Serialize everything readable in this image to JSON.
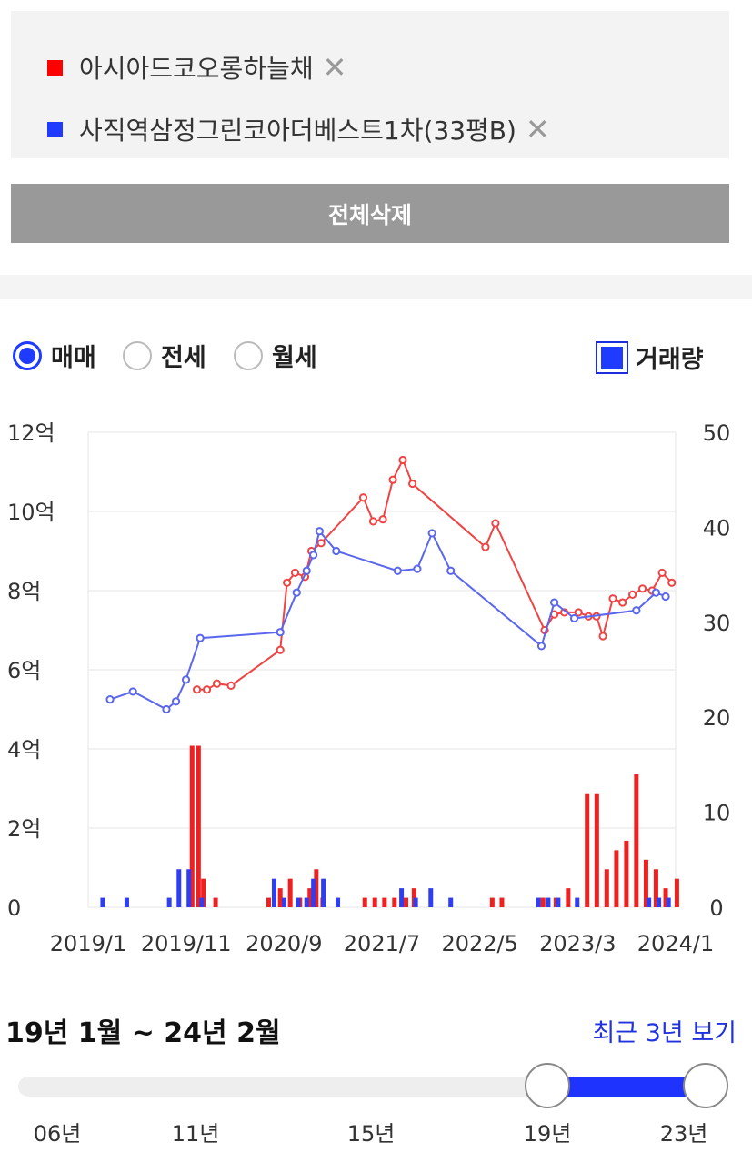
{
  "selected_items": [
    {
      "name": "아시아드코오롱하늘채",
      "color": "#ff0000",
      "remove_icon": "close-icon"
    },
    {
      "name": "사직역삼정그린코아더베스트1차(33평B)",
      "color": "#1f3bff",
      "remove_icon": "close-icon"
    }
  ],
  "remove_glyph": "✕",
  "delete_all_label": "전체삭제",
  "trade_types": [
    {
      "label": "매매",
      "checked": true
    },
    {
      "label": "전세",
      "checked": false
    },
    {
      "label": "월세",
      "checked": false
    }
  ],
  "volume_toggle": {
    "label": "거래량",
    "checked": true
  },
  "chart_data": {
    "type": "line+bar",
    "x_ticks": [
      "2019/1",
      "2019/11",
      "2020/9",
      "2021/7",
      "2022/5",
      "2023/3",
      "2024/1"
    ],
    "x_range": [
      "2019/1",
      "2024/1"
    ],
    "y_left": {
      "ticks": [
        "0",
        "2억",
        "4억",
        "6억",
        "8억",
        "10억",
        "12억"
      ],
      "range": [
        0,
        12
      ],
      "unit": "억"
    },
    "y_right": {
      "ticks": [
        "0",
        "10",
        "20",
        "30",
        "40",
        "50"
      ],
      "range": [
        0,
        50
      ]
    },
    "grid": true,
    "price_series": [
      {
        "color": "#f04444",
        "points": [
          [
            "2019-12-05",
            5.5
          ],
          [
            "2020-01-05",
            5.5
          ],
          [
            "2020-02-05",
            5.65
          ],
          [
            "2020-03-20",
            5.6
          ],
          [
            "2020-08-20",
            6.5
          ],
          [
            "2020-09-10",
            8.2
          ],
          [
            "2020-10-05",
            8.45
          ],
          [
            "2020-11-05",
            8.35
          ],
          [
            "2020-11-25",
            9.0
          ],
          [
            "2020-12-25",
            9.2
          ],
          [
            "2021-05-05",
            10.35
          ],
          [
            "2021-06-05",
            9.75
          ],
          [
            "2021-07-05",
            9.8
          ],
          [
            "2021-08-05",
            10.8
          ],
          [
            "2021-09-05",
            11.3
          ],
          [
            "2021-10-05",
            10.7
          ],
          [
            "2022-05-20",
            9.1
          ],
          [
            "2022-06-20",
            9.7
          ],
          [
            "2022-11-20",
            7.0
          ],
          [
            "2022-12-20",
            7.4
          ],
          [
            "2023-01-20",
            7.45
          ],
          [
            "2023-03-05",
            7.45
          ],
          [
            "2023-04-05",
            7.35
          ],
          [
            "2023-04-30",
            7.35
          ],
          [
            "2023-05-20",
            6.85
          ],
          [
            "2023-06-20",
            7.8
          ],
          [
            "2023-07-20",
            7.7
          ],
          [
            "2023-08-20",
            7.9
          ],
          [
            "2023-09-20",
            8.05
          ],
          [
            "2023-10-20",
            8.0
          ],
          [
            "2023-11-20",
            8.45
          ],
          [
            "2023-12-20",
            8.2
          ]
        ]
      },
      {
        "color": "#5a66ee",
        "points": [
          [
            "2019-03-10",
            5.25
          ],
          [
            "2019-05-20",
            5.45
          ],
          [
            "2019-09-01",
            5.0
          ],
          [
            "2019-10-01",
            5.2
          ],
          [
            "2019-11-01",
            5.75
          ],
          [
            "2019-12-15",
            6.8
          ],
          [
            "2020-08-20",
            6.95
          ],
          [
            "2020-10-10",
            7.95
          ],
          [
            "2020-11-10",
            8.5
          ],
          [
            "2020-12-01",
            8.9
          ],
          [
            "2020-12-20",
            9.5
          ],
          [
            "2021-02-10",
            9.0
          ],
          [
            "2021-08-20",
            8.5
          ],
          [
            "2021-10-20",
            8.55
          ],
          [
            "2021-12-05",
            9.45
          ],
          [
            "2022-02-01",
            8.5
          ],
          [
            "2022-11-10",
            6.6
          ],
          [
            "2022-12-20",
            7.7
          ],
          [
            "2023-02-20",
            7.3
          ],
          [
            "2023-09-01",
            7.5
          ],
          [
            "2023-11-01",
            7.95
          ],
          [
            "2023-12-01",
            7.85
          ]
        ]
      }
    ],
    "volume_series": [
      {
        "color": "#f02020",
        "points": [
          [
            "2019-11-20",
            17
          ],
          [
            "2019-12-10",
            17
          ],
          [
            "2019-12-25",
            3
          ],
          [
            "2020-02-01",
            1
          ],
          [
            "2020-07-15",
            1
          ],
          [
            "2020-08-20",
            2
          ],
          [
            "2020-09-20",
            3
          ],
          [
            "2020-10-20",
            1
          ],
          [
            "2020-11-20",
            2
          ],
          [
            "2020-12-10",
            4
          ],
          [
            "2020-12-30",
            1
          ],
          [
            "2021-05-10",
            1
          ],
          [
            "2021-06-10",
            1
          ],
          [
            "2021-07-10",
            1
          ],
          [
            "2021-08-10",
            1
          ],
          [
            "2021-09-15",
            1
          ],
          [
            "2021-10-10",
            2
          ],
          [
            "2022-06-10",
            1
          ],
          [
            "2022-07-10",
            1
          ],
          [
            "2022-11-15",
            1
          ],
          [
            "2022-12-25",
            1
          ],
          [
            "2023-02-01",
            2
          ],
          [
            "2023-04-01",
            12
          ],
          [
            "2023-05-01",
            12
          ],
          [
            "2023-06-01",
            4
          ],
          [
            "2023-07-01",
            6
          ],
          [
            "2023-08-01",
            7
          ],
          [
            "2023-09-01",
            14
          ],
          [
            "2023-10-01",
            5
          ],
          [
            "2023-11-01",
            4
          ],
          [
            "2023-12-01",
            2
          ],
          [
            "2024-01-05",
            3
          ]
        ]
      },
      {
        "color": "#2f3ef0",
        "points": [
          [
            "2019-02-15",
            1
          ],
          [
            "2019-05-01",
            1
          ],
          [
            "2019-09-10",
            1
          ],
          [
            "2019-10-10",
            4
          ],
          [
            "2019-11-10",
            4
          ],
          [
            "2019-12-20",
            1
          ],
          [
            "2020-08-01",
            3
          ],
          [
            "2020-09-01",
            1
          ],
          [
            "2020-10-15",
            1
          ],
          [
            "2020-11-10",
            1
          ],
          [
            "2020-12-01",
            3
          ],
          [
            "2021-01-01",
            3
          ],
          [
            "2021-02-15",
            1
          ],
          [
            "2021-09-01",
            2
          ],
          [
            "2021-10-15",
            1
          ],
          [
            "2021-12-01",
            2
          ],
          [
            "2022-02-01",
            1
          ],
          [
            "2022-11-01",
            1
          ],
          [
            "2022-12-01",
            1
          ],
          [
            "2023-01-01",
            1
          ],
          [
            "2023-03-01",
            1
          ],
          [
            "2023-10-10",
            1
          ],
          [
            "2023-11-10",
            1
          ],
          [
            "2023-12-10",
            1
          ]
        ]
      }
    ]
  },
  "period_text": "19년 1월 ~ 24년 2월",
  "recent_link": "최근 3년 보기",
  "slider": {
    "ticks": [
      "06년",
      "11년",
      "15년",
      "19년",
      "23년"
    ],
    "selected_start": "19년",
    "selected_end": "23년"
  }
}
